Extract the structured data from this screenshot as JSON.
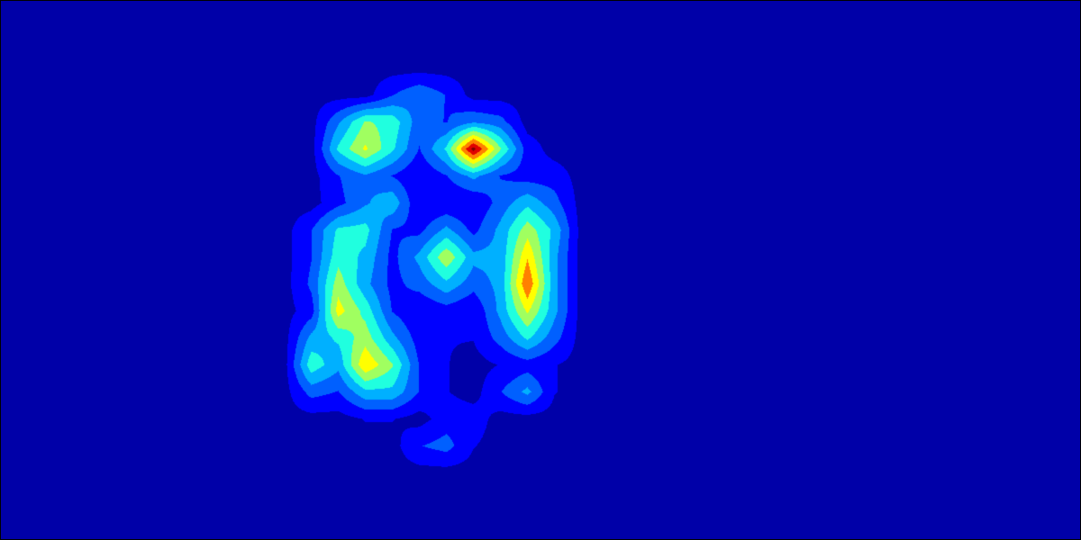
{
  "chart_data": {
    "type": "heatmap",
    "plot": "filled-contour",
    "colormap": "jet",
    "background_color": "#0000a8",
    "frame_color": "#000000",
    "levels": [
      "#0000a8",
      "#0000ff",
      "#0060ff",
      "#00b0ff",
      "#20ffdf",
      "#a0ff60",
      "#ffff00",
      "#ff8000",
      "#e00000",
      "#800000"
    ],
    "x": [
      0,
      1,
      2,
      3,
      4,
      5,
      6,
      7,
      8,
      9,
      10,
      11,
      12,
      13,
      14,
      15,
      16,
      17,
      18,
      19,
      20,
      21,
      22,
      23,
      24,
      25,
      26,
      27,
      28,
      29,
      30,
      31,
      32,
      33,
      34,
      35,
      36,
      37,
      38,
      39
    ],
    "y": [
      0,
      1,
      2,
      3,
      4,
      5,
      6,
      7,
      8,
      9,
      10,
      11,
      12,
      13,
      14,
      15,
      16,
      17,
      18,
      19
    ],
    "z": [
      [
        0,
        0,
        0,
        0,
        0,
        0,
        0,
        0,
        0,
        0,
        0,
        0,
        0,
        0,
        0,
        0,
        0,
        0,
        0,
        0,
        0,
        0,
        0,
        0,
        0,
        0,
        0,
        0,
        0,
        0,
        0,
        0,
        0,
        0,
        0,
        0,
        0,
        0,
        0,
        0
      ],
      [
        0,
        0,
        0,
        0,
        0,
        0,
        0,
        0,
        0,
        0,
        0,
        0,
        0,
        0,
        0,
        0,
        0,
        0,
        0,
        0,
        0,
        0,
        0,
        0,
        0,
        0,
        0,
        0,
        0,
        0,
        0,
        0,
        0,
        0,
        0,
        0,
        0,
        0,
        0,
        0
      ],
      [
        0,
        0,
        0,
        0,
        0,
        0,
        0,
        0,
        0,
        0,
        0,
        0,
        0,
        0,
        0,
        0,
        0,
        0,
        0,
        0,
        0,
        0,
        0,
        0,
        0,
        0,
        0,
        0,
        0,
        0,
        0,
        0,
        0,
        0,
        0,
        0,
        0,
        0,
        0,
        0
      ],
      [
        0,
        0,
        0,
        0,
        0,
        0,
        0,
        0,
        0,
        0,
        0,
        0,
        0,
        0,
        0.15,
        0.25,
        0.15,
        0,
        0,
        0,
        0,
        0,
        0,
        0,
        0,
        0,
        0,
        0,
        0,
        0,
        0,
        0,
        0,
        0,
        0,
        0,
        0,
        0,
        0,
        0
      ],
      [
        0,
        0,
        0,
        0,
        0,
        0,
        0,
        0,
        0,
        0,
        0,
        0,
        0.25,
        0.5,
        0.45,
        0.2,
        0.15,
        0.25,
        0.2,
        0,
        0,
        0,
        0,
        0,
        0,
        0,
        0,
        0,
        0,
        0,
        0,
        0,
        0,
        0,
        0,
        0,
        0,
        0,
        0,
        0
      ],
      [
        0,
        0,
        0,
        0,
        0,
        0,
        0,
        0,
        0,
        0,
        0,
        0,
        0.4,
        0.62,
        0.4,
        0.15,
        0.4,
        0.98,
        0.5,
        0.1,
        0,
        0,
        0,
        0,
        0,
        0,
        0,
        0,
        0,
        0,
        0,
        0,
        0,
        0,
        0,
        0,
        0,
        0,
        0,
        0
      ],
      [
        0,
        0,
        0,
        0,
        0,
        0,
        0,
        0,
        0,
        0,
        0,
        0,
        0.15,
        0.25,
        0.15,
        0.05,
        0.15,
        0.3,
        0.15,
        0.1,
        0.1,
        0,
        0,
        0,
        0,
        0,
        0,
        0,
        0,
        0,
        0,
        0,
        0,
        0,
        0,
        0,
        0,
        0,
        0,
        0
      ],
      [
        0,
        0,
        0,
        0,
        0,
        0,
        0,
        0,
        0,
        0,
        0,
        0,
        0.12,
        0.25,
        0.35,
        0.05,
        0.05,
        0.05,
        0.2,
        0.35,
        0.2,
        0,
        0,
        0,
        0,
        0,
        0,
        0,
        0,
        0,
        0,
        0,
        0,
        0,
        0,
        0,
        0,
        0,
        0,
        0
      ],
      [
        0,
        0,
        0,
        0,
        0,
        0,
        0,
        0,
        0,
        0,
        0,
        0.15,
        0.4,
        0.42,
        0.15,
        0.12,
        0.3,
        0.12,
        0.3,
        0.55,
        0.35,
        0,
        0,
        0,
        0,
        0,
        0,
        0,
        0,
        0,
        0,
        0,
        0,
        0,
        0,
        0,
        0,
        0,
        0,
        0
      ],
      [
        0,
        0,
        0,
        0,
        0,
        0,
        0,
        0,
        0,
        0,
        0,
        0.15,
        0.45,
        0.35,
        0.12,
        0.3,
        0.58,
        0.3,
        0.3,
        0.7,
        0.3,
        0,
        0,
        0,
        0,
        0,
        0,
        0,
        0,
        0,
        0,
        0,
        0,
        0,
        0,
        0,
        0,
        0,
        0,
        0
      ],
      [
        0,
        0,
        0,
        0,
        0,
        0,
        0,
        0,
        0,
        0,
        0,
        0.18,
        0.55,
        0.3,
        0.12,
        0.2,
        0.35,
        0.2,
        0.3,
        0.82,
        0.3,
        0,
        0,
        0,
        0,
        0,
        0,
        0,
        0,
        0,
        0,
        0,
        0,
        0,
        0,
        0,
        0,
        0,
        0,
        0
      ],
      [
        0,
        0,
        0,
        0,
        0,
        0,
        0,
        0,
        0,
        0,
        0,
        0.1,
        0.65,
        0.45,
        0.15,
        0.05,
        0.1,
        0.05,
        0.3,
        0.62,
        0.3,
        0,
        0,
        0,
        0,
        0,
        0,
        0,
        0,
        0,
        0,
        0,
        0,
        0,
        0,
        0,
        0,
        0,
        0,
        0
      ],
      [
        0,
        0,
        0,
        0,
        0,
        0,
        0,
        0,
        0,
        0,
        0,
        0.3,
        0.4,
        0.55,
        0.3,
        0.1,
        0.05,
        0.05,
        0.2,
        0.4,
        0.2,
        0,
        0,
        0,
        0,
        0,
        0,
        0,
        0,
        0,
        0,
        0,
        0,
        0,
        0,
        0,
        0,
        0,
        0,
        0
      ],
      [
        0,
        0,
        0,
        0,
        0,
        0,
        0,
        0,
        0,
        0,
        0,
        0.45,
        0.3,
        0.7,
        0.5,
        0.15,
        0.05,
        0,
        0.05,
        0.1,
        0.05,
        0,
        0,
        0,
        0,
        0,
        0,
        0,
        0,
        0,
        0,
        0,
        0,
        0,
        0,
        0,
        0,
        0,
        0,
        0
      ],
      [
        0,
        0,
        0,
        0,
        0,
        0,
        0,
        0,
        0,
        0,
        0,
        0.2,
        0.15,
        0.35,
        0.35,
        0.15,
        0.05,
        0,
        0.15,
        0.3,
        0.05,
        0,
        0,
        0,
        0,
        0,
        0,
        0,
        0,
        0,
        0,
        0,
        0,
        0,
        0,
        0,
        0,
        0,
        0,
        0
      ],
      [
        0,
        0,
        0,
        0,
        0,
        0,
        0,
        0,
        0,
        0,
        0,
        0,
        0,
        0.05,
        0.05,
        0,
        0.1,
        0.1,
        0,
        0,
        0,
        0,
        0,
        0,
        0,
        0,
        0,
        0,
        0,
        0,
        0,
        0,
        0,
        0,
        0,
        0,
        0,
        0,
        0,
        0
      ],
      [
        0,
        0,
        0,
        0,
        0,
        0,
        0,
        0,
        0,
        0,
        0,
        0,
        0,
        0,
        0,
        0.15,
        0.2,
        0.05,
        0,
        0,
        0,
        0,
        0,
        0,
        0,
        0,
        0,
        0,
        0,
        0,
        0,
        0,
        0,
        0,
        0,
        0,
        0,
        0,
        0,
        0
      ],
      [
        0,
        0,
        0,
        0,
        0,
        0,
        0,
        0,
        0,
        0,
        0,
        0,
        0,
        0,
        0,
        0,
        0,
        0,
        0,
        0,
        0,
        0,
        0,
        0,
        0,
        0,
        0,
        0,
        0,
        0,
        0,
        0,
        0,
        0,
        0,
        0,
        0,
        0,
        0,
        0
      ],
      [
        0,
        0,
        0,
        0,
        0,
        0,
        0,
        0,
        0,
        0,
        0,
        0,
        0,
        0,
        0,
        0,
        0,
        0,
        0,
        0,
        0,
        0,
        0,
        0,
        0,
        0,
        0,
        0,
        0,
        0,
        0,
        0,
        0,
        0,
        0,
        0,
        0,
        0,
        0,
        0
      ],
      [
        0,
        0,
        0,
        0,
        0,
        0,
        0,
        0,
        0,
        0,
        0,
        0,
        0,
        0,
        0,
        0,
        0,
        0,
        0,
        0,
        0,
        0,
        0,
        0,
        0,
        0,
        0,
        0,
        0,
        0,
        0,
        0,
        0,
        0,
        0,
        0,
        0,
        0,
        0,
        0
      ]
    ],
    "title": "",
    "xlabel": "",
    "ylabel": "",
    "legend": "none",
    "axes": "hidden",
    "grid": false
  }
}
